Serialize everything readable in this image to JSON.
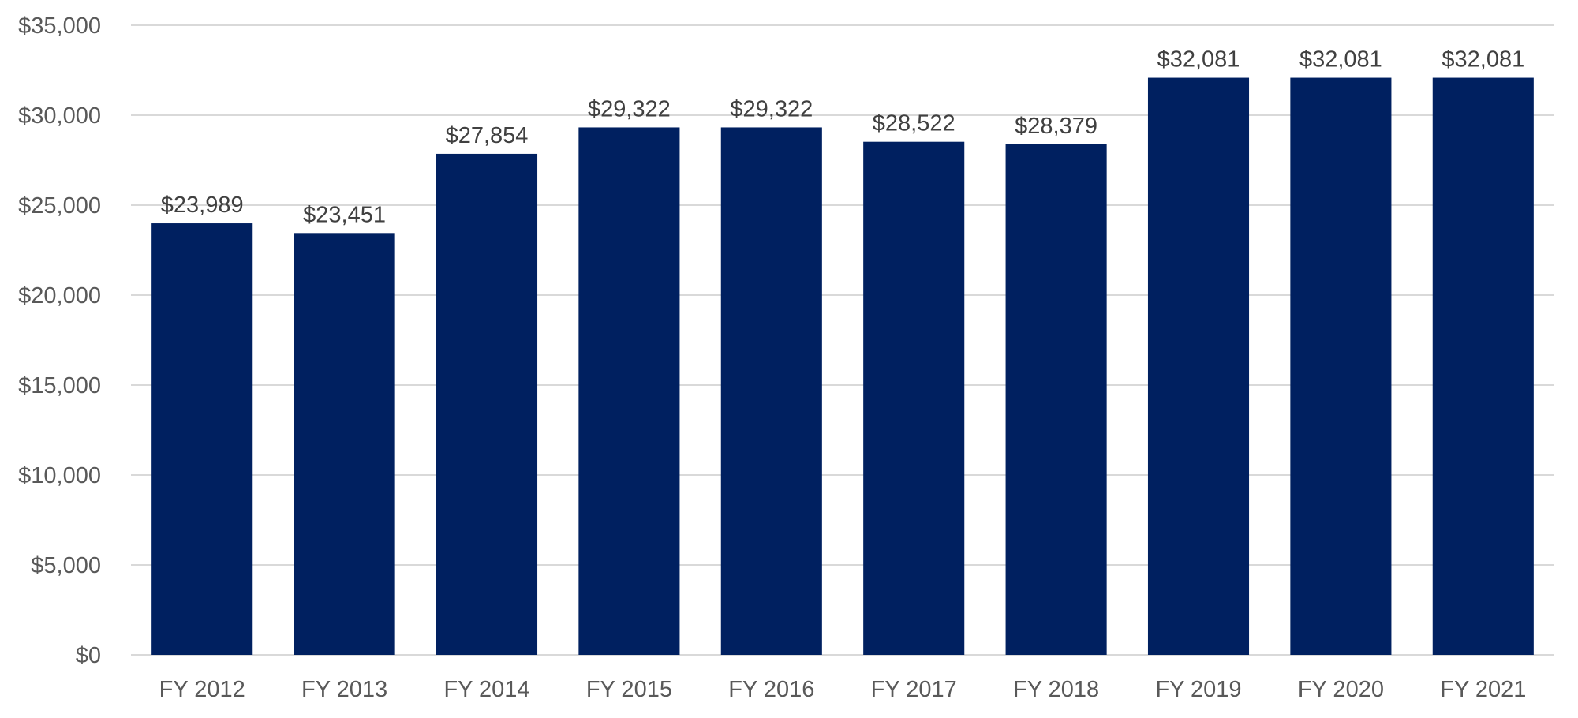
{
  "chart_data": {
    "type": "bar",
    "title": "",
    "xlabel": "",
    "ylabel": "",
    "categories": [
      "FY 2012",
      "FY 2013",
      "FY 2014",
      "FY 2015",
      "FY 2016",
      "FY 2017",
      "FY 2018",
      "FY 2019",
      "FY 2020",
      "FY 2021"
    ],
    "values": [
      23989,
      23451,
      27854,
      29322,
      29322,
      28522,
      28379,
      32081,
      32081,
      32081
    ],
    "data_labels": [
      "$23,989",
      "$23,451",
      "$27,854",
      "$29,322",
      "$29,322",
      "$28,522",
      "$28,379",
      "$32,081",
      "$32,081",
      "$32,081"
    ],
    "ylim": [
      0,
      35000
    ],
    "yticks": [
      0,
      5000,
      10000,
      15000,
      20000,
      25000,
      30000,
      35000
    ],
    "ytick_labels": [
      "$0",
      "$5,000",
      "$10,000",
      "$15,000",
      "$20,000",
      "$25,000",
      "$30,000",
      "$35,000"
    ],
    "grid": true,
    "legend": "none",
    "colors": {
      "bar": "#002060",
      "grid": "#d9d9d9",
      "text": "#595959"
    }
  }
}
